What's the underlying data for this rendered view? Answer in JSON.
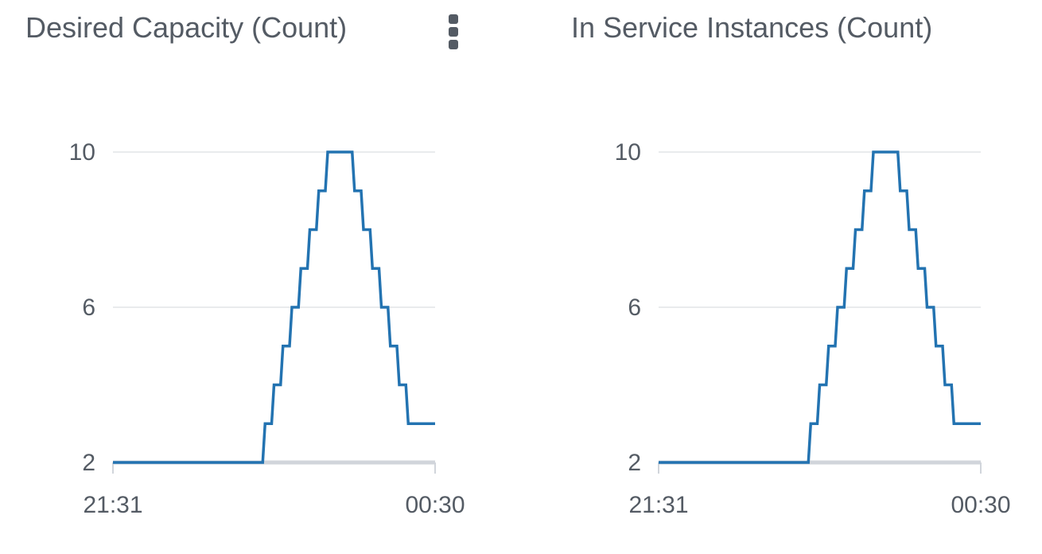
{
  "panels": [
    {
      "title": "Desired Capacity (Count)"
    },
    {
      "title": "In Service Instances (Count)"
    }
  ],
  "menu_icon": "vertical-ellipsis-icon",
  "line_color": "#2373b1",
  "chart_data": [
    {
      "type": "line",
      "title": "Desired Capacity (Count)",
      "step": true,
      "grid": true,
      "x_tick_labels": [
        "21:31",
        "00:30"
      ],
      "y_ticks": [
        2,
        6,
        10
      ],
      "ylim": [
        2,
        10
      ],
      "x_range": [
        0,
        36
      ],
      "series": [
        {
          "x": [
            0,
            16,
            17,
            18,
            19,
            20,
            21,
            22,
            23,
            24,
            25,
            26,
            27,
            28,
            29,
            30,
            31,
            32,
            33,
            34,
            35,
            36
          ],
          "y": [
            2,
            2,
            3,
            4,
            5,
            6,
            7,
            8,
            9,
            10,
            10,
            10,
            9,
            8,
            7,
            6,
            5,
            4,
            3,
            3,
            3,
            3
          ]
        }
      ]
    },
    {
      "type": "line",
      "title": "In Service Instances (Count)",
      "step": true,
      "grid": true,
      "x_tick_labels": [
        "21:31",
        "00:30"
      ],
      "y_ticks": [
        2,
        6,
        10
      ],
      "ylim": [
        2,
        10
      ],
      "x_range": [
        0,
        36
      ],
      "series": [
        {
          "x": [
            0,
            16,
            17,
            18,
            19,
            20,
            21,
            22,
            23,
            24,
            25,
            26,
            27,
            28,
            29,
            30,
            31,
            32,
            33,
            34,
            35,
            36
          ],
          "y": [
            2,
            2,
            3,
            4,
            5,
            6,
            7,
            8,
            9,
            10,
            10,
            10,
            9,
            8,
            7,
            6,
            5,
            4,
            3,
            3,
            3,
            3
          ]
        }
      ]
    }
  ]
}
